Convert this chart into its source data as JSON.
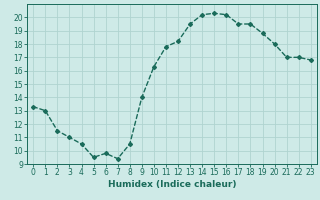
{
  "x": [
    0,
    1,
    2,
    3,
    4,
    5,
    6,
    7,
    8,
    9,
    10,
    11,
    12,
    13,
    14,
    15,
    16,
    17,
    18,
    19,
    20,
    21,
    22,
    23
  ],
  "y": [
    13.3,
    13.0,
    11.5,
    11.0,
    10.5,
    9.5,
    9.8,
    9.4,
    10.5,
    14.0,
    16.3,
    17.8,
    18.2,
    19.5,
    20.2,
    20.3,
    20.2,
    19.5,
    19.5,
    18.8,
    18.0,
    17.0,
    17.0,
    16.8
  ],
  "line_color": "#1a6b5a",
  "marker": "D",
  "marker_size": 2.0,
  "bg_color": "#ceeae7",
  "grid_color": "#b0d4d0",
  "xlabel": "Humidex (Indice chaleur)",
  "xlim": [
    -0.5,
    23.5
  ],
  "ylim": [
    9,
    21
  ],
  "yticks": [
    9,
    10,
    11,
    12,
    13,
    14,
    15,
    16,
    17,
    18,
    19,
    20
  ],
  "xticks": [
    0,
    1,
    2,
    3,
    4,
    5,
    6,
    7,
    8,
    9,
    10,
    11,
    12,
    13,
    14,
    15,
    16,
    17,
    18,
    19,
    20,
    21,
    22,
    23
  ],
  "tick_label_fontsize": 5.5,
  "xlabel_fontsize": 6.5,
  "line_width": 1.0
}
